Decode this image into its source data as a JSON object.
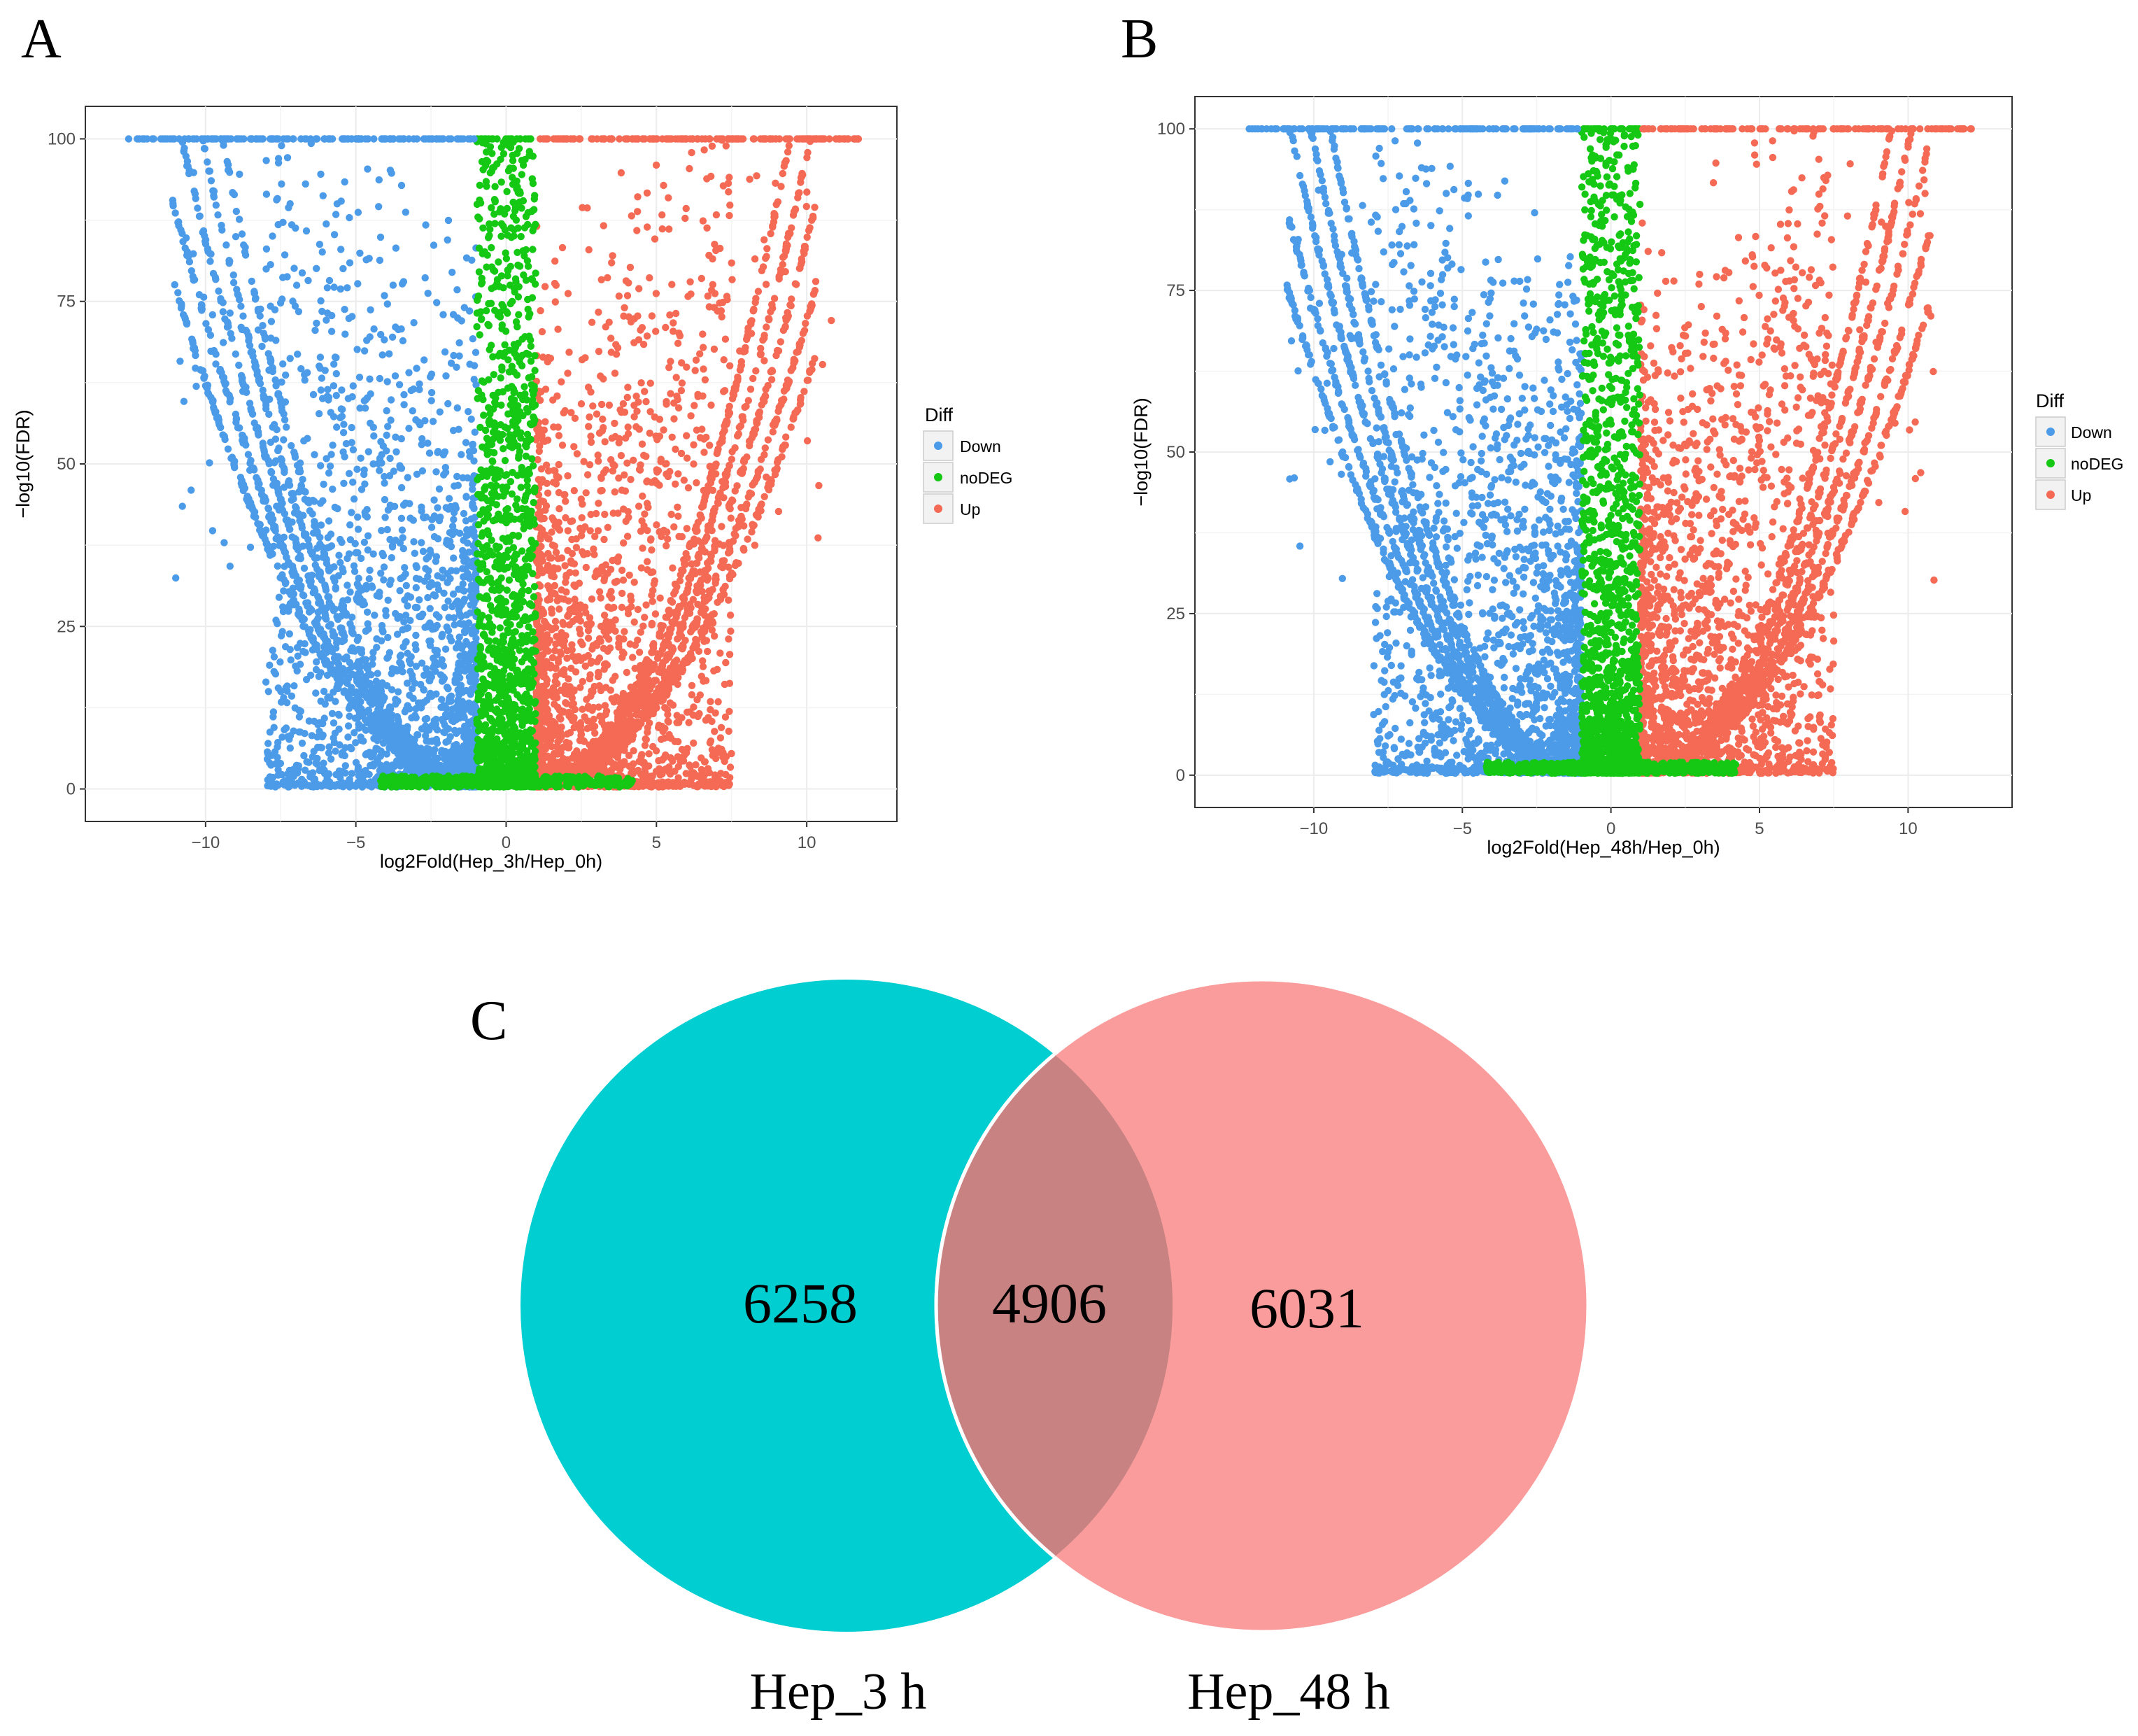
{
  "figure": {
    "panel_labels": {
      "a": "A",
      "b": "B",
      "c": "C"
    }
  },
  "colors": {
    "down": "#4C9BE8",
    "nodeg": "#14C814",
    "up": "#F46A55",
    "panel_bg": "#ffffff",
    "grid": "#ececec",
    "venn_left": "#00CED1",
    "venn_right": "#FA8080"
  },
  "chart_data": [
    {
      "type": "scatter",
      "panel": "A",
      "title": "",
      "xlabel": "log2Fold(Hep_3h/Hep_0h)",
      "ylabel": "−log10(FDR)",
      "xlim": [
        -14,
        13
      ],
      "ylim": [
        -5,
        105
      ],
      "xticks": [
        -10,
        -5,
        0,
        5,
        10
      ],
      "yticks": [
        0,
        25,
        50,
        75,
        100
      ],
      "xtick_labels": [
        "−10",
        "−5",
        "0",
        "5",
        "10"
      ],
      "ytick_labels": [
        "0",
        "25",
        "50",
        "75",
        "100"
      ],
      "grid": true,
      "legend": {
        "title": "Diff",
        "position": "right",
        "entries": [
          "Down",
          "noDEG",
          "Up"
        ]
      },
      "series": [
        {
          "name": "Down",
          "rule": "log2fold <= -1 and significant"
        },
        {
          "name": "noDEG",
          "rule": "-1 < log2fold < 1"
        },
        {
          "name": "Up",
          "rule": "log2fold >= 1 and significant"
        }
      ],
      "capped_max": 100,
      "x_range_observed": [
        -12.6,
        11.8
      ]
    },
    {
      "type": "scatter",
      "panel": "B",
      "title": "",
      "xlabel": "log2Fold(Hep_48h/Hep_0h)",
      "ylabel": "−log10(FDR)",
      "xlim": [
        -14,
        13.5
      ],
      "ylim": [
        -5,
        105
      ],
      "xticks": [
        -10,
        -5,
        0,
        5,
        10
      ],
      "yticks": [
        0,
        25,
        50,
        75,
        100
      ],
      "xtick_labels": [
        "−10",
        "−5",
        "0",
        "5",
        "10"
      ],
      "ytick_labels": [
        "0",
        "25",
        "50",
        "75",
        "100"
      ],
      "grid": true,
      "legend": {
        "title": "Diff",
        "position": "right",
        "entries": [
          "Down",
          "noDEG",
          "Up"
        ]
      },
      "series": [
        {
          "name": "Down",
          "rule": "log2fold <= -1 and significant"
        },
        {
          "name": "noDEG",
          "rule": "-1 < log2fold < 1"
        },
        {
          "name": "Up",
          "rule": "log2fold >= 1 and significant"
        }
      ],
      "capped_max": 100,
      "x_range_observed": [
        -12.4,
        12.2
      ]
    },
    {
      "type": "venn",
      "panel": "C",
      "sets": [
        {
          "name": "Hep_3 h",
          "only": "6258"
        },
        {
          "name": "Hep_48 h",
          "only": "6031"
        }
      ],
      "intersection": "4906"
    }
  ]
}
